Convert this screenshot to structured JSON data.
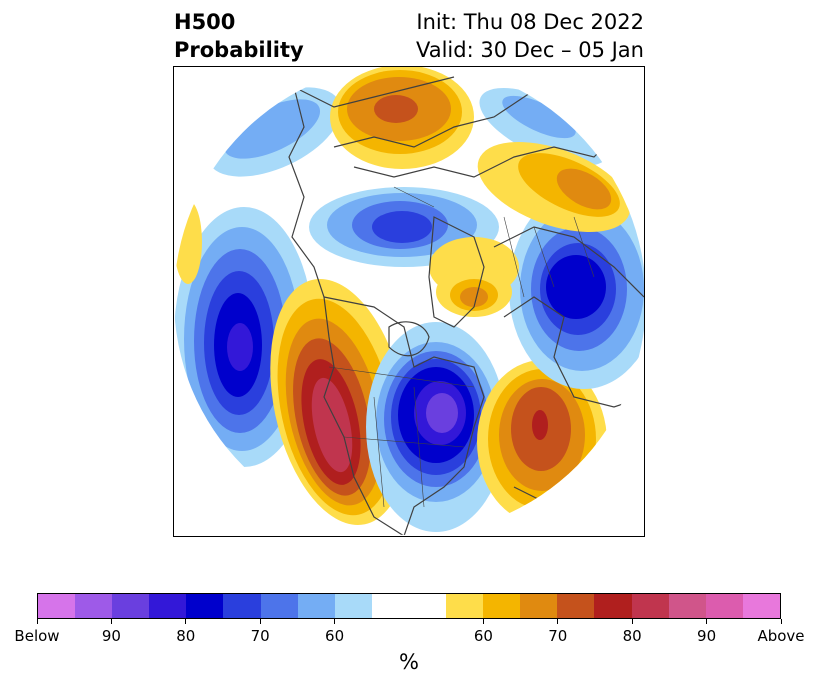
{
  "title": {
    "variable": "H500",
    "product": "Probability",
    "init": "Init: Thu 08 Dec 2022",
    "valid": "Valid: 30 Dec – 05 Jan"
  },
  "map": {
    "projection": "north-polar-stereographic",
    "coastline_color": "#404040"
  },
  "colorbar": {
    "colors": [
      "#d674ea",
      "#9e5ae8",
      "#6a3fdf",
      "#3318d8",
      "#0000cc",
      "#2a3fdd",
      "#4d74ea",
      "#74adf4",
      "#a8daf9",
      "#ffffff",
      "#ffffff",
      "#fedd4a",
      "#f4b500",
      "#e08a10",
      "#c5521c",
      "#b01f1e",
      "#c0354e",
      "#d0558a",
      "#dc5cae",
      "#e878dc"
    ],
    "labels": [
      "Below",
      "90",
      "80",
      "70",
      "60",
      "60",
      "70",
      "80",
      "90",
      "Above"
    ],
    "unit": "%"
  }
}
